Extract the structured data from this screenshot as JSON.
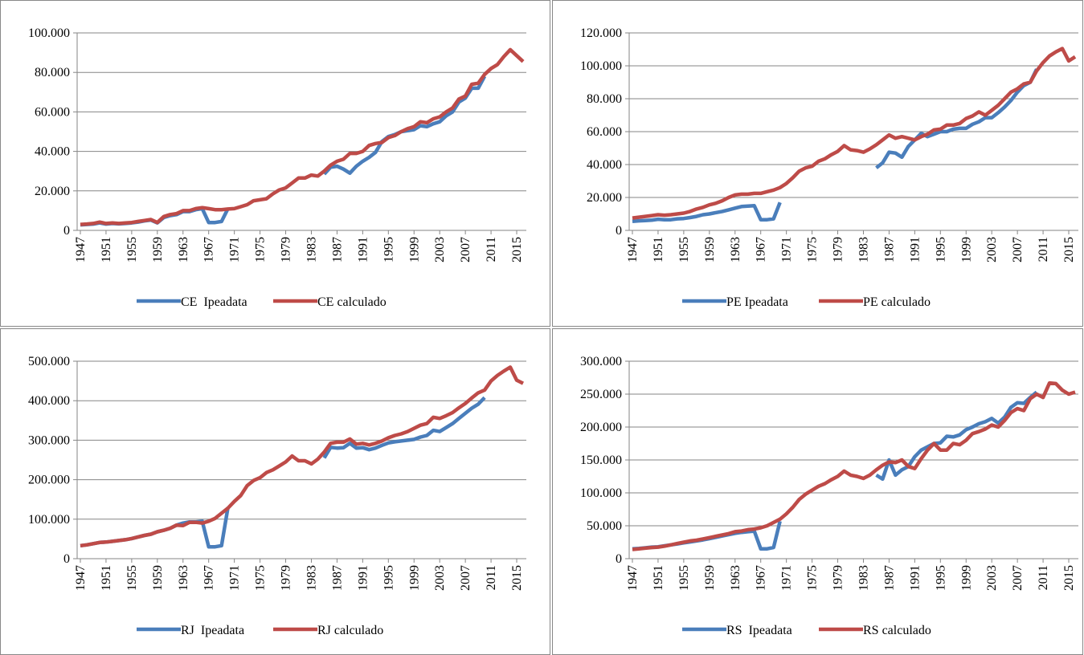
{
  "chart_data": [
    {
      "type": "line",
      "grid": true,
      "xlim": [
        1946.5,
        2016.5
      ],
      "ylim": [
        0,
        100000
      ],
      "x": [
        1947,
        1948,
        1949,
        1950,
        1951,
        1952,
        1953,
        1954,
        1955,
        1956,
        1957,
        1958,
        1959,
        1960,
        1961,
        1962,
        1963,
        1964,
        1965,
        1966,
        1967,
        1968,
        1969,
        1970,
        1971,
        1972,
        1973,
        1974,
        1975,
        1976,
        1977,
        1978,
        1979,
        1980,
        1981,
        1982,
        1983,
        1984,
        1985,
        1986,
        1987,
        1988,
        1989,
        1990,
        1991,
        1992,
        1993,
        1994,
        1995,
        1996,
        1997,
        1998,
        1999,
        2000,
        2001,
        2002,
        2003,
        2004,
        2005,
        2006,
        2007,
        2008,
        2009,
        2010,
        2011,
        2012,
        2013,
        2014,
        2015,
        2016
      ],
      "xticks": [
        1947,
        1951,
        1955,
        1959,
        1963,
        1967,
        1971,
        1975,
        1979,
        1983,
        1987,
        1991,
        1995,
        1999,
        2003,
        2007,
        2011,
        2015
      ],
      "yticks": [
        0,
        {
          "value": 20000,
          "label": "20.000"
        },
        {
          "value": 40000,
          "label": "40.000"
        },
        {
          "value": 60000,
          "label": "60.000"
        },
        {
          "value": 80000,
          "label": "80.000"
        },
        {
          "value": 100000,
          "label": "100.000"
        }
      ],
      "series": [
        {
          "name": "CE  Ipeadata",
          "color": "#4a7ebb",
          "values": [
            2800,
            3000,
            3200,
            3800,
            3200,
            3500,
            3300,
            3500,
            3800,
            4200,
            4800,
            5200,
            3800,
            6500,
            7500,
            8000,
            9500,
            9500,
            10500,
            11000,
            4000,
            4000,
            4500,
            11000,
            null,
            null,
            null,
            null,
            null,
            null,
            null,
            null,
            null,
            null,
            null,
            null,
            null,
            null,
            28500,
            32000,
            32500,
            31000,
            29000,
            32500,
            35000,
            37000,
            39500,
            45000,
            47500,
            48500,
            50000,
            50500,
            51000,
            53000,
            52500,
            54000,
            55000,
            58000,
            60000,
            65000,
            67000,
            72000,
            72000,
            78000,
            null,
            null,
            null,
            null,
            null,
            null
          ]
        },
        {
          "name": "CE calculado",
          "color": "#be4b48",
          "values": [
            3000,
            3200,
            3500,
            4200,
            3500,
            3800,
            3500,
            3800,
            4000,
            4500,
            5000,
            5500,
            4000,
            7000,
            8000,
            8500,
            10000,
            10000,
            11000,
            11500,
            11000,
            10500,
            10500,
            10800,
            11000,
            12000,
            13000,
            15000,
            15500,
            16000,
            18500,
            20500,
            21500,
            24000,
            26500,
            26500,
            28000,
            27500,
            30000,
            33000,
            35000,
            36000,
            39000,
            39000,
            40000,
            43000,
            44000,
            44500,
            47000,
            48000,
            50000,
            51500,
            52500,
            55000,
            54500,
            56500,
            57500,
            60000,
            62000,
            66500,
            68000,
            74000,
            74500,
            79000,
            82000,
            84000,
            88000,
            91500,
            88500,
            85500
          ]
        }
      ]
    },
    {
      "type": "line",
      "grid": true,
      "xlim": [
        1946.5,
        2016.5
      ],
      "ylim": [
        0,
        120000
      ],
      "x": [
        1947,
        1948,
        1949,
        1950,
        1951,
        1952,
        1953,
        1954,
        1955,
        1956,
        1957,
        1958,
        1959,
        1960,
        1961,
        1962,
        1963,
        1964,
        1965,
        1966,
        1967,
        1968,
        1969,
        1970,
        1971,
        1972,
        1973,
        1974,
        1975,
        1976,
        1977,
        1978,
        1979,
        1980,
        1981,
        1982,
        1983,
        1984,
        1985,
        1986,
        1987,
        1988,
        1989,
        1990,
        1991,
        1992,
        1993,
        1994,
        1995,
        1996,
        1997,
        1998,
        1999,
        2000,
        2001,
        2002,
        2003,
        2004,
        2005,
        2006,
        2007,
        2008,
        2009,
        2010,
        2011,
        2012,
        2013,
        2014,
        2015,
        2016
      ],
      "xticks": [
        1947,
        1951,
        1955,
        1959,
        1963,
        1967,
        1971,
        1975,
        1979,
        1983,
        1987,
        1991,
        1995,
        1999,
        2003,
        2007,
        2011,
        2015
      ],
      "yticks": [
        0,
        {
          "value": 20000,
          "label": "20.000"
        },
        {
          "value": 40000,
          "label": "40.000"
        },
        {
          "value": 60000,
          "label": "60.000"
        },
        {
          "value": 80000,
          "label": "80.000"
        },
        {
          "value": 100000,
          "label": "100.000"
        },
        {
          "value": 120000,
          "label": "120.000"
        }
      ],
      "series": [
        {
          "name": "PE Ipeadata",
          "color": "#4a7ebb",
          "values": [
            5500,
            5800,
            6000,
            6200,
            6800,
            6500,
            6500,
            7000,
            7200,
            7800,
            8500,
            9500,
            10000,
            10800,
            11500,
            12500,
            13500,
            14500,
            14800,
            15000,
            6500,
            6500,
            7000,
            17000,
            null,
            null,
            null,
            null,
            null,
            null,
            null,
            null,
            null,
            null,
            null,
            null,
            null,
            null,
            38000,
            41000,
            47500,
            47000,
            44500,
            51000,
            55000,
            59000,
            57000,
            58500,
            60000,
            60000,
            61500,
            62000,
            62000,
            64500,
            66000,
            68500,
            68500,
            71500,
            75000,
            79000,
            84000,
            88000,
            90000,
            98000,
            null,
            null,
            null,
            null,
            null,
            null
          ]
        },
        {
          "name": "PE calculado",
          "color": "#be4b48",
          "values": [
            7500,
            8000,
            8500,
            9000,
            9500,
            9200,
            9500,
            10000,
            10500,
            11500,
            13000,
            14000,
            15500,
            16500,
            18000,
            20000,
            21500,
            22000,
            22000,
            22500,
            22500,
            23500,
            24500,
            26000,
            28500,
            32000,
            36000,
            38000,
            39000,
            42000,
            43500,
            46000,
            48000,
            51500,
            49000,
            48500,
            47500,
            49500,
            52000,
            55000,
            58000,
            56000,
            57000,
            56000,
            55000,
            57000,
            58500,
            61000,
            61500,
            64000,
            64000,
            65000,
            68000,
            69500,
            72000,
            70000,
            73000,
            76000,
            80000,
            84000,
            86000,
            89000,
            90000,
            97000,
            102000,
            106000,
            108500,
            110500,
            103000,
            105500
          ]
        }
      ]
    },
    {
      "type": "line",
      "grid": true,
      "xlim": [
        1946.5,
        2016.5
      ],
      "ylim": [
        0,
        500000
      ],
      "x": [
        1947,
        1948,
        1949,
        1950,
        1951,
        1952,
        1953,
        1954,
        1955,
        1956,
        1957,
        1958,
        1959,
        1960,
        1961,
        1962,
        1963,
        1964,
        1965,
        1966,
        1967,
        1968,
        1969,
        1970,
        1971,
        1972,
        1973,
        1974,
        1975,
        1976,
        1977,
        1978,
        1979,
        1980,
        1981,
        1982,
        1983,
        1984,
        1985,
        1986,
        1987,
        1988,
        1989,
        1990,
        1991,
        1992,
        1993,
        1994,
        1995,
        1996,
        1997,
        1998,
        1999,
        2000,
        2001,
        2002,
        2003,
        2004,
        2005,
        2006,
        2007,
        2008,
        2009,
        2010,
        2011,
        2012,
        2013,
        2014,
        2015,
        2016
      ],
      "xticks": [
        1947,
        1951,
        1955,
        1959,
        1963,
        1967,
        1971,
        1975,
        1979,
        1983,
        1987,
        1991,
        1995,
        1999,
        2003,
        2007,
        2011,
        2015
      ],
      "yticks": [
        0,
        {
          "value": 100000,
          "label": "100.000"
        },
        {
          "value": 200000,
          "label": "200.000"
        },
        {
          "value": 300000,
          "label": "300.000"
        },
        {
          "value": 400000,
          "label": "400.000"
        },
        {
          "value": 500000,
          "label": "500.000"
        }
      ],
      "series": [
        {
          "name": "RJ  Ipeadata",
          "color": "#4a7ebb",
          "values": [
            33000,
            35000,
            38000,
            41000,
            42000,
            44000,
            46000,
            48000,
            51000,
            55000,
            59000,
            62000,
            68000,
            72000,
            77000,
            85000,
            90000,
            93000,
            93000,
            95000,
            30000,
            30000,
            33000,
            130000,
            null,
            null,
            null,
            null,
            null,
            null,
            null,
            null,
            null,
            null,
            null,
            null,
            null,
            null,
            255000,
            282000,
            280000,
            281000,
            292000,
            280000,
            281000,
            276000,
            280000,
            287000,
            293000,
            296000,
            298000,
            300000,
            302000,
            308000,
            312000,
            325000,
            322000,
            332000,
            342000,
            355000,
            368000,
            381000,
            391000,
            408000,
            null,
            null,
            null,
            null,
            null,
            null
          ]
        },
        {
          "name": "RJ calculado",
          "color": "#be4b48",
          "values": [
            33000,
            35000,
            38000,
            41000,
            42000,
            44000,
            46000,
            48000,
            51000,
            55000,
            59000,
            62000,
            68000,
            72000,
            77000,
            85000,
            84000,
            92000,
            92000,
            90000,
            95000,
            102000,
            115000,
            128000,
            145000,
            160000,
            185000,
            198000,
            205000,
            218000,
            225000,
            235000,
            245000,
            260000,
            248000,
            248000,
            240000,
            252000,
            270000,
            292000,
            295000,
            295000,
            303000,
            290000,
            292000,
            288000,
            292000,
            298000,
            306000,
            312000,
            316000,
            322000,
            330000,
            338000,
            342000,
            358000,
            355000,
            362000,
            370000,
            382000,
            393000,
            407000,
            420000,
            427000,
            450000,
            464000,
            475000,
            485000,
            452000,
            444000
          ]
        }
      ]
    },
    {
      "type": "line",
      "grid": true,
      "xlim": [
        1946.5,
        2016.5
      ],
      "ylim": [
        0,
        300000
      ],
      "x": [
        1947,
        1948,
        1949,
        1950,
        1951,
        1952,
        1953,
        1954,
        1955,
        1956,
        1957,
        1958,
        1959,
        1960,
        1961,
        1962,
        1963,
        1964,
        1965,
        1966,
        1967,
        1968,
        1969,
        1970,
        1971,
        1972,
        1973,
        1974,
        1975,
        1976,
        1977,
        1978,
        1979,
        1980,
        1981,
        1982,
        1983,
        1984,
        1985,
        1986,
        1987,
        1988,
        1989,
        1990,
        1991,
        1992,
        1993,
        1994,
        1995,
        1996,
        1997,
        1998,
        1999,
        2000,
        2001,
        2002,
        2003,
        2004,
        2005,
        2006,
        2007,
        2008,
        2009,
        2010,
        2011,
        2012,
        2013,
        2014,
        2015,
        2016
      ],
      "xticks": [
        1947,
        1951,
        1955,
        1959,
        1963,
        1967,
        1971,
        1975,
        1979,
        1983,
        1987,
        1991,
        1995,
        1999,
        2003,
        2007,
        2011,
        2015
      ],
      "yticks": [
        0,
        {
          "value": 50000,
          "label": "50.000"
        },
        {
          "value": 100000,
          "label": "100.000"
        },
        {
          "value": 150000,
          "label": "150.000"
        },
        {
          "value": 200000,
          "label": "200.000"
        },
        {
          "value": 250000,
          "label": "250.000"
        },
        {
          "value": 300000,
          "label": "300.000"
        }
      ],
      "series": [
        {
          "name": "RS  Ipeadata",
          "color": "#4a7ebb",
          "values": [
            15000,
            15500,
            16500,
            17500,
            18000,
            19500,
            21000,
            22500,
            24000,
            25500,
            27000,
            28500,
            30500,
            32500,
            34500,
            36500,
            38500,
            40000,
            41000,
            42000,
            15000,
            15000,
            17000,
            57000,
            null,
            null,
            null,
            null,
            null,
            null,
            null,
            null,
            null,
            null,
            null,
            null,
            null,
            null,
            127000,
            121000,
            150000,
            127000,
            135000,
            140000,
            155000,
            165000,
            170000,
            175000,
            176000,
            186000,
            185000,
            188000,
            196000,
            200000,
            205000,
            208000,
            213000,
            206000,
            215000,
            230000,
            237000,
            236000,
            245000,
            253000,
            null,
            null,
            null,
            null,
            null,
            null
          ]
        },
        {
          "name": "RS calculado",
          "color": "#be4b48",
          "values": [
            14000,
            15000,
            16000,
            17000,
            17500,
            19000,
            21000,
            23000,
            25000,
            27000,
            28000,
            30000,
            32000,
            34000,
            36000,
            38000,
            41000,
            42000,
            44000,
            45000,
            47000,
            50000,
            55000,
            60000,
            68000,
            78000,
            90000,
            98000,
            104000,
            110000,
            114000,
            120000,
            125000,
            133000,
            127000,
            125000,
            122000,
            127000,
            135000,
            142000,
            147000,
            146000,
            150000,
            140000,
            137000,
            152000,
            165000,
            175000,
            165000,
            165000,
            175000,
            173000,
            180000,
            190000,
            193000,
            197000,
            203000,
            200000,
            210000,
            222000,
            228000,
            225000,
            243000,
            250000,
            245000,
            267000,
            266000,
            256000,
            250000,
            253000
          ]
        }
      ]
    }
  ]
}
